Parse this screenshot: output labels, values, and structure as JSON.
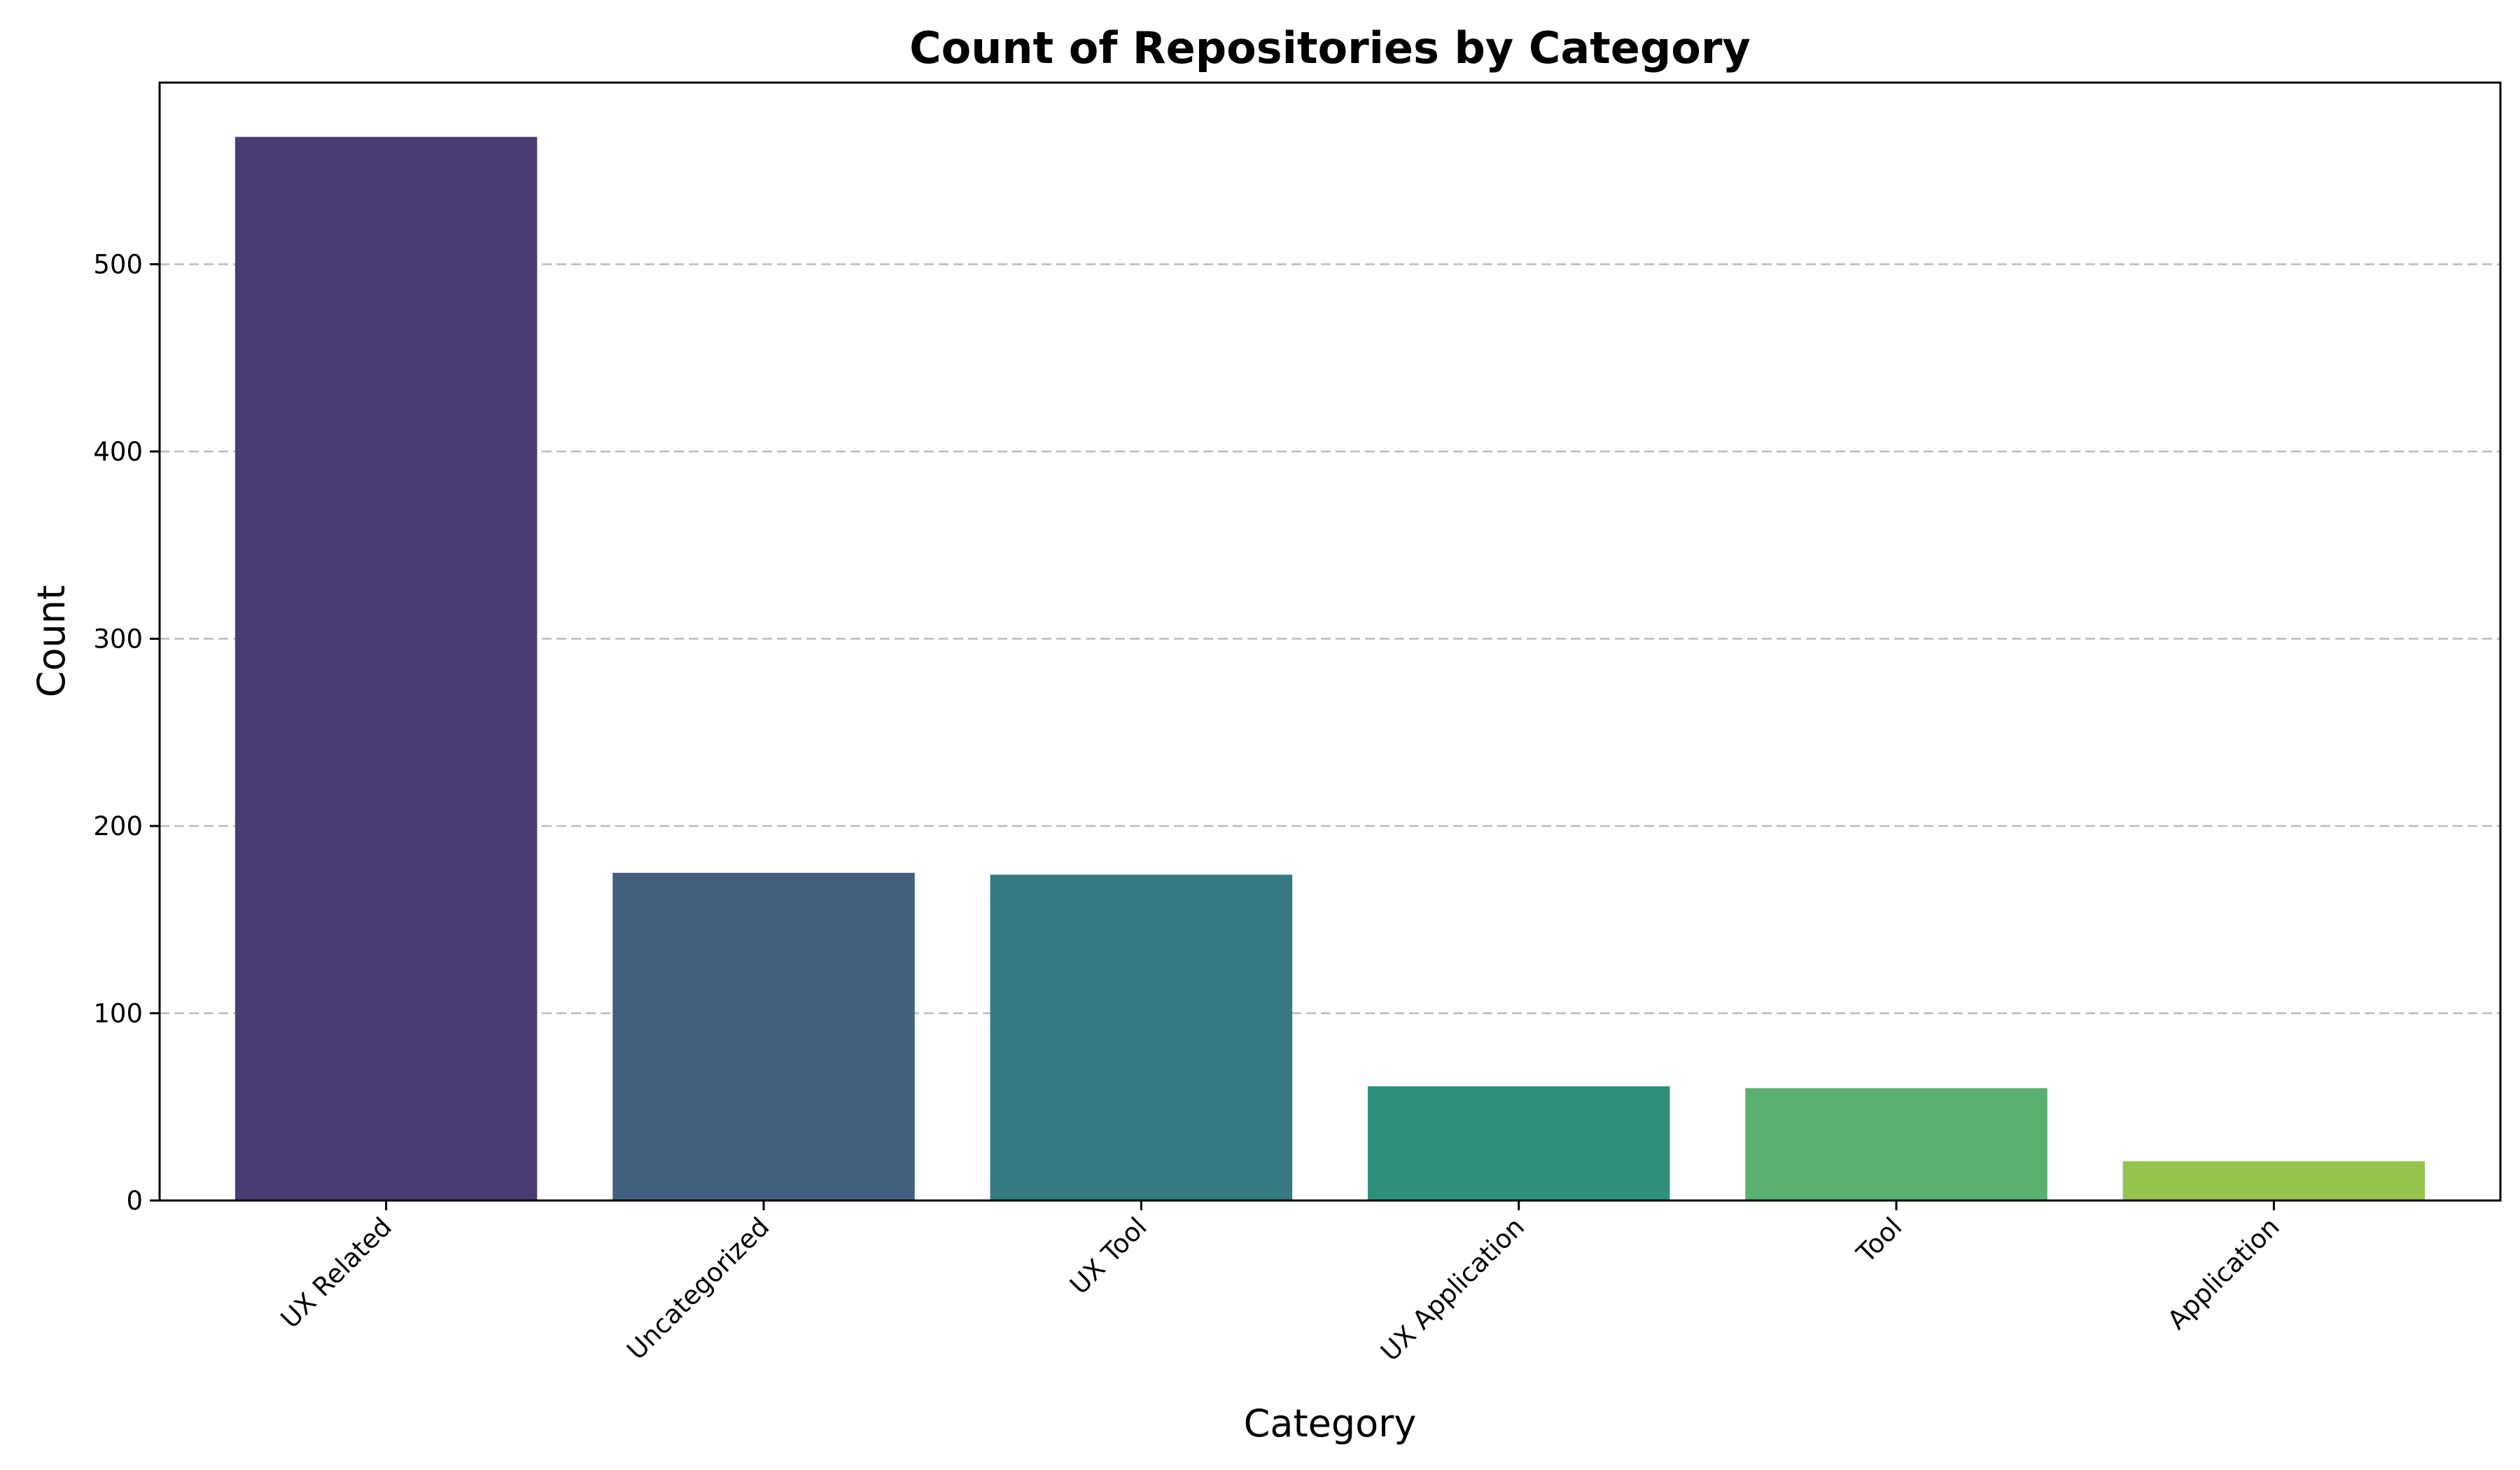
{
  "chart_data": {
    "type": "bar",
    "title": "Count of Repositories by Category",
    "xlabel": "Category",
    "ylabel": "Count",
    "categories": [
      "UX Related",
      "Uncategorized",
      "UX Tool",
      "UX Application",
      "Tool",
      "Application"
    ],
    "values": [
      568,
      175,
      174,
      61,
      60,
      21
    ],
    "colors": [
      "#4a3b72",
      "#425f80",
      "#347a80",
      "#2f917d",
      "#5ab070",
      "#97c34f"
    ],
    "ylim": [
      0,
      597
    ],
    "yticks": [
      0,
      100,
      200,
      300,
      400,
      500
    ],
    "grid": "y-dashed",
    "legend": "none"
  }
}
